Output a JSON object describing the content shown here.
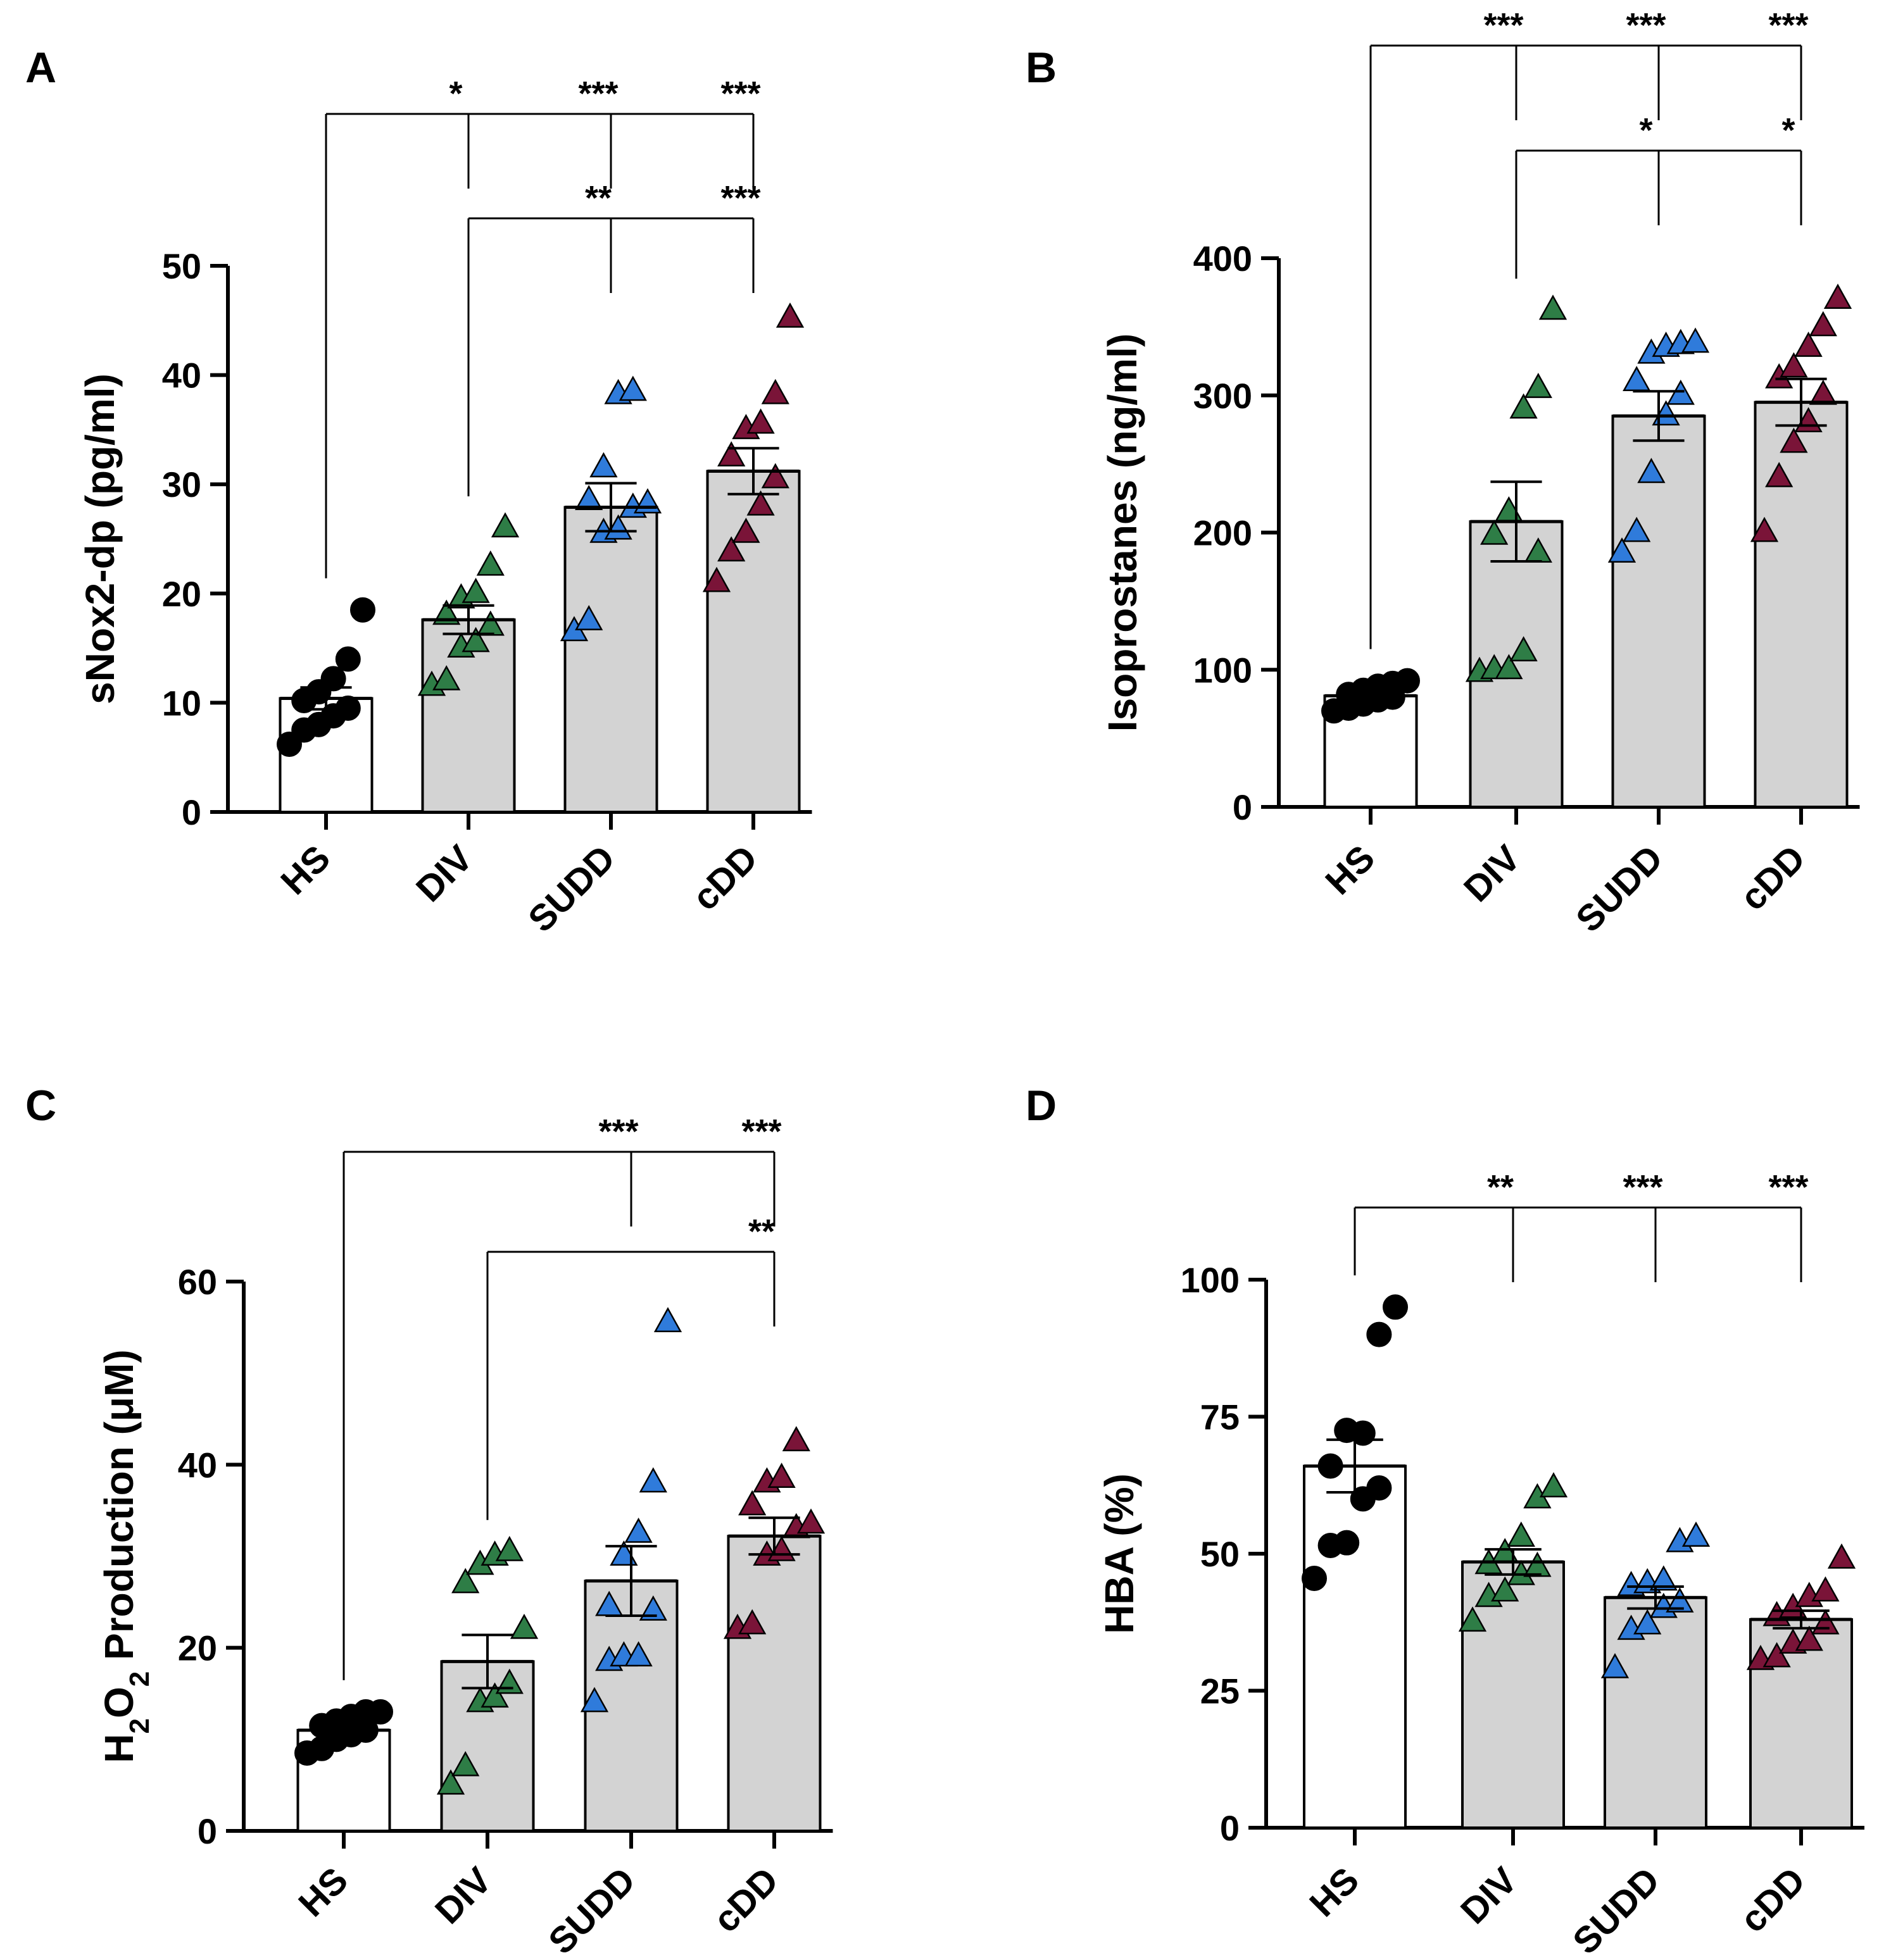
{
  "chart_data": [
    {
      "panel": "A",
      "type": "bar",
      "ylabel_parts": [
        {
          "text": "sNox2-dp (pg/ml)",
          "sub": false
        }
      ],
      "categories": [
        "HS",
        "DIV",
        "SUDD",
        "cDD"
      ],
      "ylim": [
        0,
        50
      ],
      "yticks": [
        0,
        10,
        20,
        30,
        40,
        50
      ],
      "values": [
        10.4,
        17.6,
        27.9,
        31.2
      ],
      "sem": [
        1.0,
        1.3,
        2.2,
        2.1
      ],
      "points": [
        [
          6.2,
          7.5,
          8.0,
          8.8,
          9.5,
          10.2,
          11.0,
          12.2,
          14.0,
          18.5
        ],
        [
          11.5,
          12.0,
          15.0,
          15.5,
          17.0,
          18.0,
          19.5,
          20.0,
          22.5,
          26.0
        ],
        [
          16.5,
          17.5,
          25.5,
          25.8,
          27.8,
          28.5,
          31.5,
          38.2,
          38.5,
          28.2
        ],
        [
          21.0,
          23.8,
          25.5,
          28.0,
          30.5,
          32.5,
          35.0,
          35.5,
          38.2,
          45.2
        ]
      ],
      "comparisons": [
        {
          "from": 0,
          "to": [
            1,
            2,
            3
          ],
          "stars": [
            "*",
            "***",
            "***"
          ]
        },
        {
          "from": 1,
          "to": [
            2,
            3
          ],
          "stars": [
            "**",
            "***"
          ]
        }
      ]
    },
    {
      "panel": "B",
      "type": "bar",
      "ylabel_parts": [
        {
          "text": "Isoprostanes (ng/ml)",
          "sub": false
        }
      ],
      "categories": [
        "HS",
        "DIV",
        "SUDD",
        "cDD"
      ],
      "ylim": [
        0,
        400
      ],
      "yticks": [
        0,
        100,
        200,
        300,
        400
      ],
      "values": [
        81,
        208,
        285,
        295
      ],
      "sem": [
        2.5,
        29,
        18,
        17
      ],
      "points": [
        [
          70,
          72,
          75,
          78,
          80,
          82,
          85,
          88,
          90,
          92
        ],
        [
          98,
          100,
          100,
          113,
          185,
          198,
          215,
          290,
          305,
          362
        ],
        [
          185,
          200,
          243,
          285,
          300,
          310,
          330,
          335,
          337,
          338
        ],
        [
          200,
          240,
          265,
          280,
          300,
          312,
          320,
          335,
          350,
          370
        ]
      ],
      "comparisons": [
        {
          "from": 0,
          "to": [
            1,
            2,
            3
          ],
          "stars": [
            "***",
            "***",
            "***"
          ]
        },
        {
          "from": 1,
          "to": [
            2,
            3
          ],
          "stars": [
            "*",
            "*"
          ]
        }
      ]
    },
    {
      "panel": "C",
      "type": "bar",
      "ylabel_parts": [
        {
          "text": "H",
          "sub": false
        },
        {
          "text": "2",
          "sub": true
        },
        {
          "text": "O",
          "sub": false
        },
        {
          "text": "2",
          "sub": true
        },
        {
          "text": " Production (",
          "sub": false
        },
        {
          "text": "μ",
          "sub": false
        },
        {
          "text": "M)",
          "sub": false
        }
      ],
      "categories": [
        "HS",
        "DIV",
        "SUDD",
        "cDD"
      ],
      "ylim": [
        0,
        60
      ],
      "yticks": [
        0,
        20,
        40,
        60
      ],
      "values": [
        11.0,
        18.5,
        27.3,
        32.2
      ],
      "sem": [
        0.6,
        2.9,
        3.8,
        2.0
      ],
      "points": [
        [
          8.5,
          9.0,
          10.0,
          10.5,
          11.0,
          11.5,
          12.0,
          12.5,
          13.0,
          13.0
        ],
        [
          5.0,
          7.0,
          14.0,
          14.5,
          16.0,
          27.0,
          29.0,
          30.0,
          30.5,
          22.0
        ],
        [
          14.0,
          18.5,
          19.0,
          19.0,
          24.0,
          24.5,
          30.0,
          32.5,
          38.0,
          55.5
        ],
        [
          22.0,
          22.5,
          30.0,
          30.5,
          33.0,
          35.5,
          38.0,
          38.5,
          42.5,
          33.5
        ]
      ],
      "comparisons": [
        {
          "from": 0,
          "to": [
            2,
            3
          ],
          "stars": [
            "***",
            "***"
          ]
        },
        {
          "from": 1,
          "to": [
            3
          ],
          "stars": [
            "**"
          ]
        }
      ]
    },
    {
      "panel": "D",
      "type": "bar",
      "ylabel_parts": [
        {
          "text": "HBA (%)",
          "sub": false
        }
      ],
      "categories": [
        "HS",
        "DIV",
        "SUDD",
        "cDD"
      ],
      "ylim": [
        0,
        100
      ],
      "yticks": [
        0,
        25,
        50,
        75,
        100
      ],
      "ytick_labels": [
        "0",
        "25",
        "50",
        "75",
        "100"
      ],
      "values": [
        66.0,
        48.5,
        42.0,
        38.0
      ],
      "sem": [
        4.8,
        2.3,
        2.0,
        1.6
      ],
      "points": [
        [
          45.5,
          51.5,
          52.0,
          60.0,
          62.0,
          66.0,
          72.5,
          72.0,
          90.0,
          95.0
        ],
        [
          37.5,
          42.0,
          43.0,
          46.0,
          47.5,
          48.0,
          50.0,
          53.0,
          60.0,
          62.0
        ],
        [
          29.0,
          36.0,
          37.0,
          40.0,
          41.0,
          44.0,
          44.5,
          45.0,
          52.0,
          53.0
        ],
        [
          30.5,
          31.0,
          33.5,
          34.0,
          37.0,
          38.5,
          40.0,
          42.0,
          43.0,
          49.0
        ]
      ],
      "comparisons": [
        {
          "from": 0,
          "to": [
            1,
            2,
            3
          ],
          "stars": [
            "**",
            "***",
            "***"
          ]
        }
      ]
    }
  ],
  "colors": {
    "HS": "#000000",
    "DIV": "#2e7d46",
    "SUDD": "#2f7bdb",
    "cDD": "#7a1438",
    "bar_fill_control": "#ffffff",
    "bar_fill": "#d3d3d3",
    "outline": "#000000"
  },
  "marker_shapes": [
    "circle",
    "triangle",
    "triangle",
    "triangle"
  ]
}
